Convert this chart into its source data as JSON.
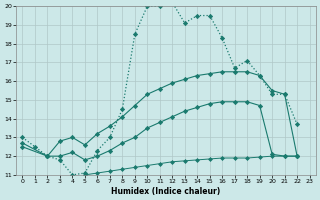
{
  "xlabel": "Humidex (Indice chaleur)",
  "background_color": "#cce8e8",
  "grid_color": "#b0c8c8",
  "line_color": "#1a7a6e",
  "xlim": [
    -0.5,
    23.5
  ],
  "ylim": [
    11,
    20
  ],
  "yticks": [
    11,
    12,
    13,
    14,
    15,
    16,
    17,
    18,
    19,
    20
  ],
  "xticks": [
    0,
    1,
    2,
    3,
    4,
    5,
    6,
    7,
    8,
    9,
    10,
    11,
    12,
    13,
    14,
    15,
    16,
    17,
    18,
    19,
    20,
    21,
    22,
    23
  ],
  "curve_dotted_x": [
    0,
    1,
    2,
    3,
    4,
    5,
    6,
    7,
    8,
    9,
    10,
    11,
    12,
    13,
    14,
    15,
    16,
    17,
    18,
    19,
    20,
    21,
    22
  ],
  "curve_dotted_y": [
    13.0,
    12.5,
    12.0,
    11.8,
    11.0,
    11.1,
    12.3,
    13.0,
    14.5,
    18.5,
    20.0,
    20.0,
    20.2,
    19.1,
    19.5,
    19.5,
    18.3,
    16.7,
    17.1,
    16.3,
    15.3,
    15.3,
    13.7
  ],
  "curve_upper_x": [
    0,
    2,
    3,
    4,
    5,
    6,
    7,
    8,
    9,
    10,
    11,
    12,
    13,
    14,
    15,
    16,
    17,
    18,
    19,
    20,
    21,
    22
  ],
  "curve_upper_y": [
    12.7,
    12.0,
    12.8,
    13.0,
    12.6,
    13.2,
    13.6,
    14.1,
    14.7,
    15.3,
    15.6,
    15.9,
    16.1,
    16.3,
    16.4,
    16.5,
    16.5,
    16.5,
    16.3,
    15.5,
    15.3,
    12.0
  ],
  "curve_mid_x": [
    0,
    2,
    3,
    4,
    5,
    6,
    7,
    8,
    9,
    10,
    11,
    12,
    13,
    14,
    15,
    16,
    17,
    18,
    19,
    20,
    21,
    22
  ],
  "curve_mid_y": [
    12.5,
    12.0,
    12.0,
    12.2,
    11.8,
    12.0,
    12.3,
    12.7,
    13.0,
    13.5,
    13.8,
    14.1,
    14.4,
    14.6,
    14.8,
    14.9,
    14.9,
    14.9,
    14.7,
    12.1,
    12.0,
    12.0
  ],
  "curve_lower_x": [
    4,
    5,
    6,
    7,
    8,
    9,
    10,
    11,
    12,
    13,
    14,
    15,
    16,
    17,
    18,
    19,
    20,
    21,
    22
  ],
  "curve_lower_y": [
    10.8,
    11.0,
    11.1,
    11.2,
    11.3,
    11.4,
    11.5,
    11.6,
    11.7,
    11.75,
    11.8,
    11.85,
    11.9,
    11.9,
    11.9,
    11.95,
    12.0,
    12.0,
    12.0
  ]
}
